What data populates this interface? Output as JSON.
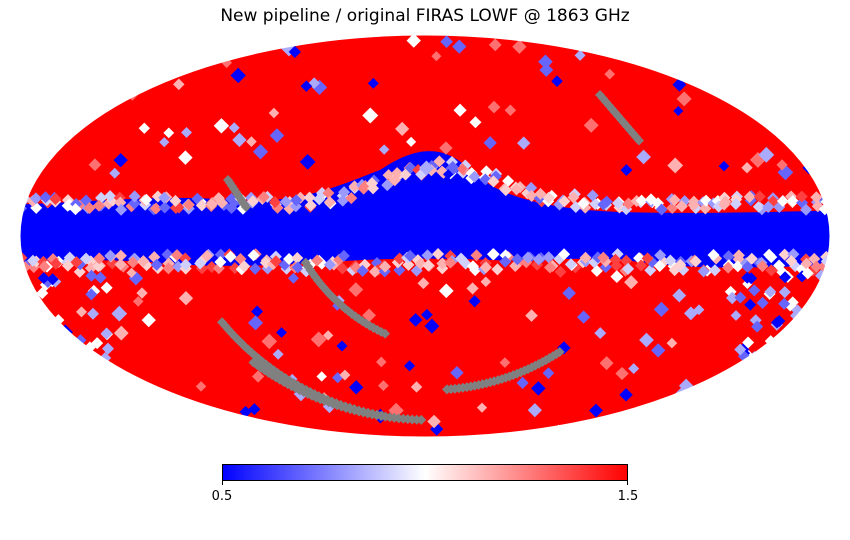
{
  "title": "New pipeline / original FIRAS LOWF @ 1863 GHz",
  "colorbar": {
    "min_label": "0.5",
    "max_label": "1.5",
    "colors": {
      "low": "#0000ff",
      "mid": "#ffffff",
      "high": "#ff0000",
      "masked": "#808080"
    }
  },
  "map": {
    "projection": "Mollweide",
    "background_value_color": "#ff0000",
    "galactic_plane_color": "#0000ff"
  }
}
